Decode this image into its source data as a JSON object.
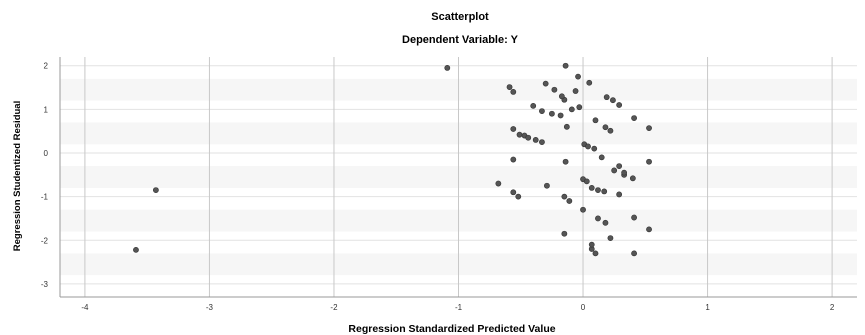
{
  "chart_data": {
    "type": "scatter",
    "title": "Scatterplot",
    "subtitle": "Dependent Variable: Y",
    "xlabel": "Regression Standardized Predicted Value",
    "ylabel": "Regression Studentized Residual",
    "xlim": [
      -4.2,
      2.2
    ],
    "ylim": [
      -3.3,
      2.2
    ],
    "x_ticks": [
      -4,
      -3,
      -2,
      -1,
      0,
      1,
      2
    ],
    "y_ticks": [
      -3,
      -2,
      -1,
      0,
      1,
      2
    ],
    "x_tick_labels": [
      "-4",
      "-3",
      "-2",
      "-1",
      "0",
      "1",
      "2"
    ],
    "y_tick_labels": [
      "-3",
      "-2",
      "-1",
      "0",
      "1",
      "2"
    ],
    "grid": true,
    "series": [
      {
        "x": [
          -1.09,
          -3.43,
          -3.59,
          -0.14,
          -0.04,
          0.05,
          -0.3,
          -0.23,
          -0.15,
          -0.06,
          -0.03,
          0.19,
          0.24,
          0.29,
          -0.59,
          -0.56,
          -0.4,
          -0.33,
          -0.25,
          -0.18,
          -0.17,
          -0.13,
          -0.09,
          0.1,
          0.18,
          0.22,
          0.41,
          0.53,
          -0.56,
          -0.51,
          -0.47,
          -0.44,
          -0.38,
          -0.33,
          0.01,
          0.04,
          0.09,
          0.15,
          0.29,
          -0.56,
          -0.14,
          0.0,
          0.25,
          0.33,
          0.4,
          0.53,
          -0.68,
          -0.29,
          -0.56,
          -0.52,
          0.03,
          0.07,
          0.12,
          0.17,
          0.29,
          -0.15,
          -0.11,
          0.0,
          0.12,
          0.18,
          0.41,
          0.53,
          -0.15,
          0.07,
          0.22,
          0.07,
          0.1,
          0.41,
          0.33
        ],
        "y": [
          1.95,
          -0.85,
          -2.22,
          2.0,
          1.75,
          1.61,
          1.59,
          1.45,
          1.22,
          1.42,
          1.05,
          1.28,
          1.21,
          1.1,
          1.51,
          1.4,
          1.08,
          0.96,
          0.9,
          0.86,
          1.3,
          0.6,
          1.0,
          0.75,
          0.59,
          0.51,
          0.8,
          0.57,
          0.55,
          0.42,
          0.4,
          0.35,
          0.3,
          0.25,
          0.2,
          0.15,
          0.1,
          -0.1,
          -0.3,
          -0.15,
          -0.2,
          -0.6,
          -0.4,
          -0.5,
          -0.58,
          -0.2,
          -0.7,
          -0.75,
          -0.9,
          -1.0,
          -0.65,
          -0.8,
          -0.85,
          -0.88,
          -0.95,
          -1.0,
          -1.1,
          -1.3,
          -1.5,
          -1.6,
          -1.48,
          -1.75,
          -1.85,
          -2.2,
          -1.95,
          -2.1,
          -2.3,
          -2.3,
          -0.45
        ]
      }
    ]
  }
}
